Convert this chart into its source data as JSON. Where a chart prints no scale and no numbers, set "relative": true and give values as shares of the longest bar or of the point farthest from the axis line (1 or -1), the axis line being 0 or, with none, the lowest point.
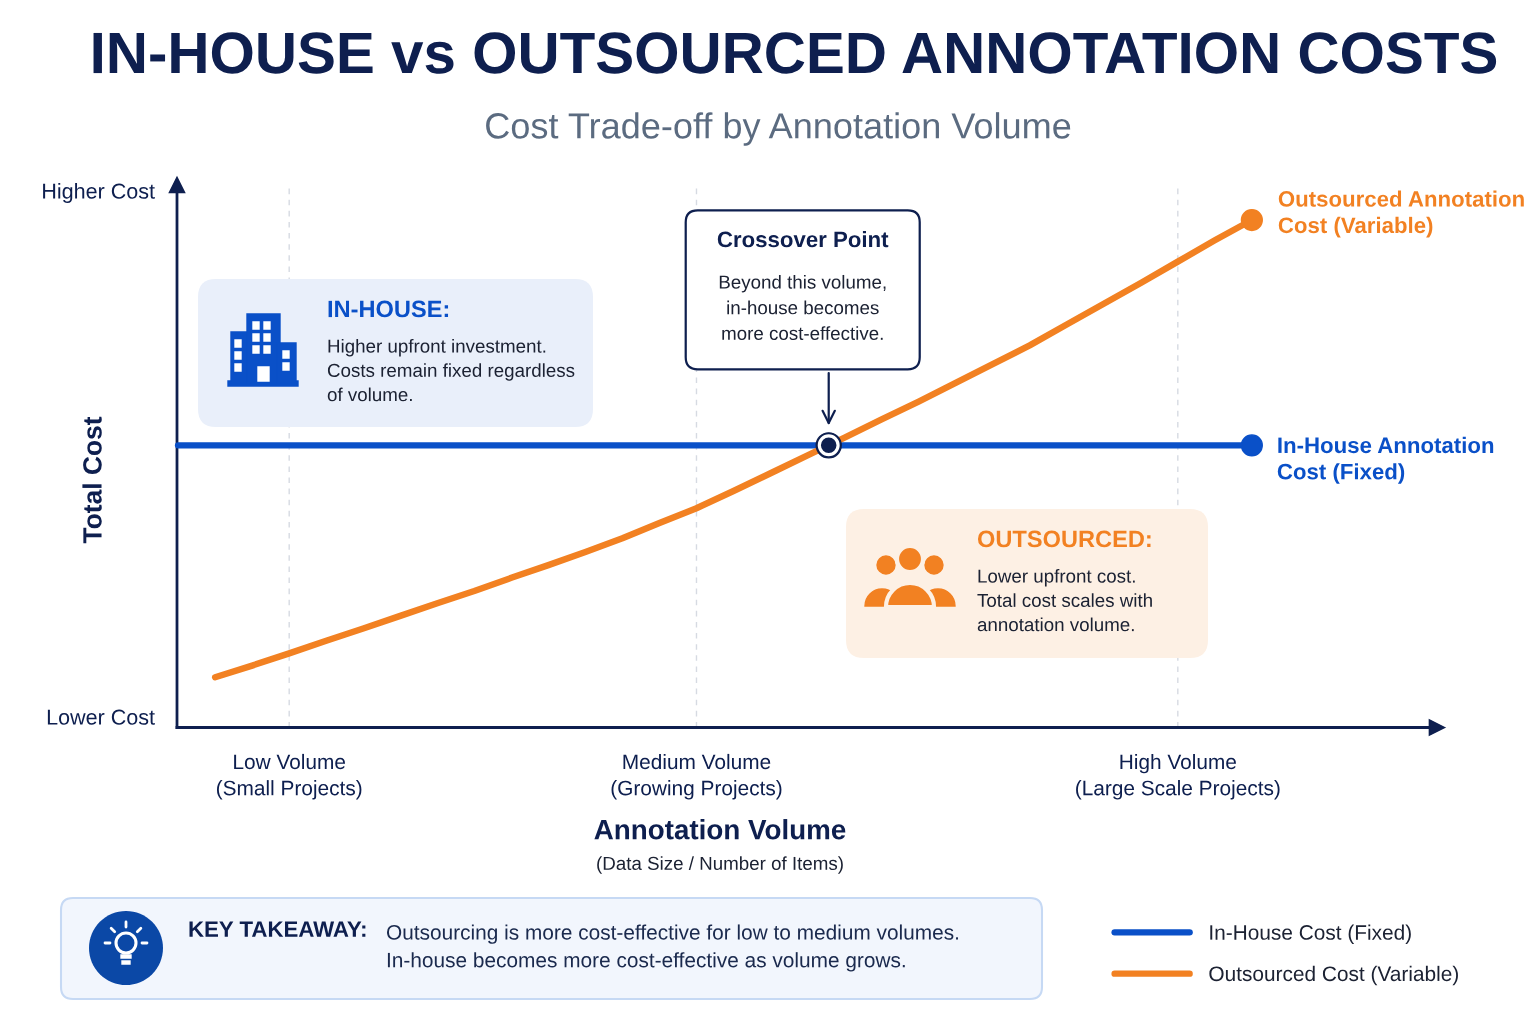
{
  "chart_data": {
    "type": "line",
    "title": "IN-HOUSE vs OUTSOURCED ANNOTATION COSTS",
    "subtitle": "Cost Trade-off by Annotation Volume",
    "xlabel": "Annotation Volume",
    "ylabel": "Total Cost",
    "categories": [
      null,
      null,
      null,
      "Low Volume\n(Small Projects)",
      null,
      null,
      null,
      null,
      null,
      null,
      null,
      null,
      null,
      null,
      "Medium Volume\n(Growing Projects)",
      null,
      null,
      null,
      null,
      null,
      null,
      null,
      null,
      null,
      null,
      null,
      null,
      "High Volume\n(Large Scale Projects)",
      null,
      null
    ],
    "relative": true,
    "series": [
      {
        "name": "In-House Cost (Fixed)",
        "color": "#0a50c8",
        "values": [
          0.556,
          0.556,
          0.556,
          0.556,
          0.556,
          0.556,
          0.556,
          0.556,
          0.556,
          0.556,
          0.556,
          0.556,
          0.556,
          0.556,
          0.556,
          0.556,
          0.556,
          0.556,
          0.556,
          0.556,
          0.556,
          0.556,
          0.556,
          0.556,
          0.556,
          0.556,
          0.556,
          0.556,
          0.556,
          0.556
        ]
      },
      {
        "name": "Outsourced Cost (Variable)",
        "color": "#f28122",
        "values": [
          null,
          0.099,
          0.122,
          0.146,
          0.171,
          0.195,
          0.22,
          0.245,
          0.269,
          0.295,
          0.32,
          0.346,
          0.373,
          0.403,
          0.432,
          0.466,
          0.501,
          0.536,
          0.571,
          0.607,
          0.642,
          0.679,
          0.716,
          0.753,
          0.794,
          0.835,
          0.876,
          0.918,
          0.96,
          1.0
        ]
      }
    ],
    "annotations": [
      "Higher Cost",
      "Lower Cost",
      "IN-HOUSE:",
      "Higher upfront investment.\nCosts remain fixed regardless\nof volume.",
      "Crossover Point",
      "Beyond this volume,\nin-house becomes\nmore cost-effective.",
      "Outsourced Annotation\nCost (Variable)",
      "In-House Annotation\nCost (Fixed)",
      "OUTSOURCED:",
      "Lower upfront cost.\nTotal cost scales with\nannotation volume.",
      "KEY TAKEAWAY:",
      "Outsourcing is more cost-effective for low to medium volumes.\nIn-house becomes more cost-effective as volume grows.",
      "(Data Size / Number of Items)"
    ],
    "grid": "x",
    "legend": "bottom right",
    "tick_labels": "x",
    "line_style": "solid"
  }
}
